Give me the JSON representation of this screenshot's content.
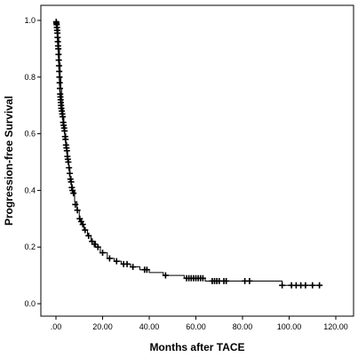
{
  "chart_data": {
    "type": "line",
    "title": "",
    "xlabel": "Months after TACE",
    "ylabel": "Progression-free Survival",
    "xlim": [
      -3,
      122
    ],
    "ylim": [
      -0.03,
      1.05
    ],
    "xticks": [
      0,
      20,
      40,
      60,
      80,
      100,
      120
    ],
    "xtick_labels": [
      ".00",
      "20.00",
      "40.00",
      "60.00",
      "80.00",
      "100.00",
      "120.00"
    ],
    "yticks": [
      0.0,
      0.2,
      0.4,
      0.6,
      0.8,
      1.0
    ],
    "ytick_labels": [
      "0.0",
      "0.2",
      "0.4",
      "0.6",
      "0.8",
      "1.0"
    ],
    "grid": false,
    "legend": "none",
    "series": [
      {
        "step_curve": [
          [
            0,
            1.0
          ],
          [
            0.3,
            0.99
          ],
          [
            0.6,
            0.97
          ],
          [
            0.9,
            0.94
          ],
          [
            1.2,
            0.9
          ],
          [
            1.5,
            0.85
          ],
          [
            1.8,
            0.8
          ],
          [
            2.1,
            0.76
          ],
          [
            2.4,
            0.72
          ],
          [
            2.7,
            0.69
          ],
          [
            3.0,
            0.66
          ],
          [
            3.4,
            0.63
          ],
          [
            3.8,
            0.6
          ],
          [
            4.2,
            0.57
          ],
          [
            4.6,
            0.54
          ],
          [
            5.0,
            0.51
          ],
          [
            5.5,
            0.48
          ],
          [
            6.0,
            0.45
          ],
          [
            6.5,
            0.42
          ],
          [
            7.0,
            0.4
          ],
          [
            8.0,
            0.36
          ],
          [
            9.0,
            0.33
          ],
          [
            10.0,
            0.3
          ],
          [
            11.0,
            0.28
          ],
          [
            12.0,
            0.26
          ],
          [
            13.5,
            0.24
          ],
          [
            15.0,
            0.22
          ],
          [
            17.0,
            0.2
          ],
          [
            19.0,
            0.18
          ],
          [
            22.0,
            0.16
          ],
          [
            25.0,
            0.15
          ],
          [
            28.0,
            0.14
          ],
          [
            32.0,
            0.13
          ],
          [
            36.0,
            0.12
          ],
          [
            40.0,
            0.11
          ],
          [
            46.0,
            0.1
          ],
          [
            55.0,
            0.09
          ],
          [
            64.0,
            0.08
          ],
          [
            97.0,
            0.065
          ],
          [
            113.0,
            0.065
          ]
        ],
        "censored": [
          [
            0.1,
            0.995
          ],
          [
            0.2,
            0.99
          ],
          [
            0.3,
            0.985
          ],
          [
            0.4,
            0.975
          ],
          [
            0.5,
            0.965
          ],
          [
            0.6,
            0.955
          ],
          [
            0.7,
            0.94
          ],
          [
            0.8,
            0.925
          ],
          [
            0.9,
            0.91
          ],
          [
            1.0,
            0.9
          ],
          [
            1.1,
            0.88
          ],
          [
            1.2,
            0.86
          ],
          [
            1.3,
            0.84
          ],
          [
            1.4,
            0.82
          ],
          [
            1.5,
            0.8
          ],
          [
            1.6,
            0.78
          ],
          [
            1.7,
            0.76
          ],
          [
            1.8,
            0.74
          ],
          [
            1.9,
            0.73
          ],
          [
            2.0,
            0.72
          ],
          [
            2.1,
            0.71
          ],
          [
            2.2,
            0.7
          ],
          [
            2.3,
            0.69
          ],
          [
            2.5,
            0.68
          ],
          [
            2.7,
            0.67
          ],
          [
            2.9,
            0.66
          ],
          [
            3.1,
            0.64
          ],
          [
            3.3,
            0.63
          ],
          [
            3.5,
            0.62
          ],
          [
            3.7,
            0.61
          ],
          [
            3.9,
            0.59
          ],
          [
            4.1,
            0.58
          ],
          [
            4.3,
            0.56
          ],
          [
            4.5,
            0.55
          ],
          [
            4.7,
            0.54
          ],
          [
            4.9,
            0.52
          ],
          [
            5.1,
            0.51
          ],
          [
            5.3,
            0.5
          ],
          [
            5.6,
            0.48
          ],
          [
            5.9,
            0.46
          ],
          [
            6.2,
            0.44
          ],
          [
            6.5,
            0.43
          ],
          [
            6.8,
            0.41
          ],
          [
            7.1,
            0.4
          ],
          [
            7.5,
            0.39
          ],
          [
            8.3,
            0.35
          ],
          [
            9.2,
            0.33
          ],
          [
            10.2,
            0.3
          ],
          [
            10.8,
            0.29
          ],
          [
            11.5,
            0.28
          ],
          [
            12.5,
            0.26
          ],
          [
            14.0,
            0.24
          ],
          [
            15.5,
            0.22
          ],
          [
            16.5,
            0.21
          ],
          [
            18.0,
            0.2
          ],
          [
            20.0,
            0.18
          ],
          [
            23.0,
            0.16
          ],
          [
            26.0,
            0.15
          ],
          [
            29.0,
            0.14
          ],
          [
            30.5,
            0.14
          ],
          [
            33.0,
            0.13
          ],
          [
            38.0,
            0.12
          ],
          [
            39.0,
            0.12
          ],
          [
            47.0,
            0.1
          ],
          [
            56.0,
            0.09
          ],
          [
            57.0,
            0.09
          ],
          [
            58.0,
            0.09
          ],
          [
            59.0,
            0.09
          ],
          [
            60.0,
            0.09
          ],
          [
            61.0,
            0.09
          ],
          [
            62.0,
            0.09
          ],
          [
            63.0,
            0.09
          ],
          [
            67.0,
            0.08
          ],
          [
            68.0,
            0.08
          ],
          [
            69.0,
            0.08
          ],
          [
            70.0,
            0.08
          ],
          [
            72.0,
            0.08
          ],
          [
            73.0,
            0.08
          ],
          [
            81.0,
            0.08
          ],
          [
            83.0,
            0.08
          ],
          [
            97.0,
            0.065
          ],
          [
            101.0,
            0.065
          ],
          [
            103.0,
            0.065
          ],
          [
            105.0,
            0.065
          ],
          [
            107.0,
            0.065
          ],
          [
            110.0,
            0.065
          ],
          [
            113.0,
            0.065
          ]
        ]
      }
    ]
  }
}
